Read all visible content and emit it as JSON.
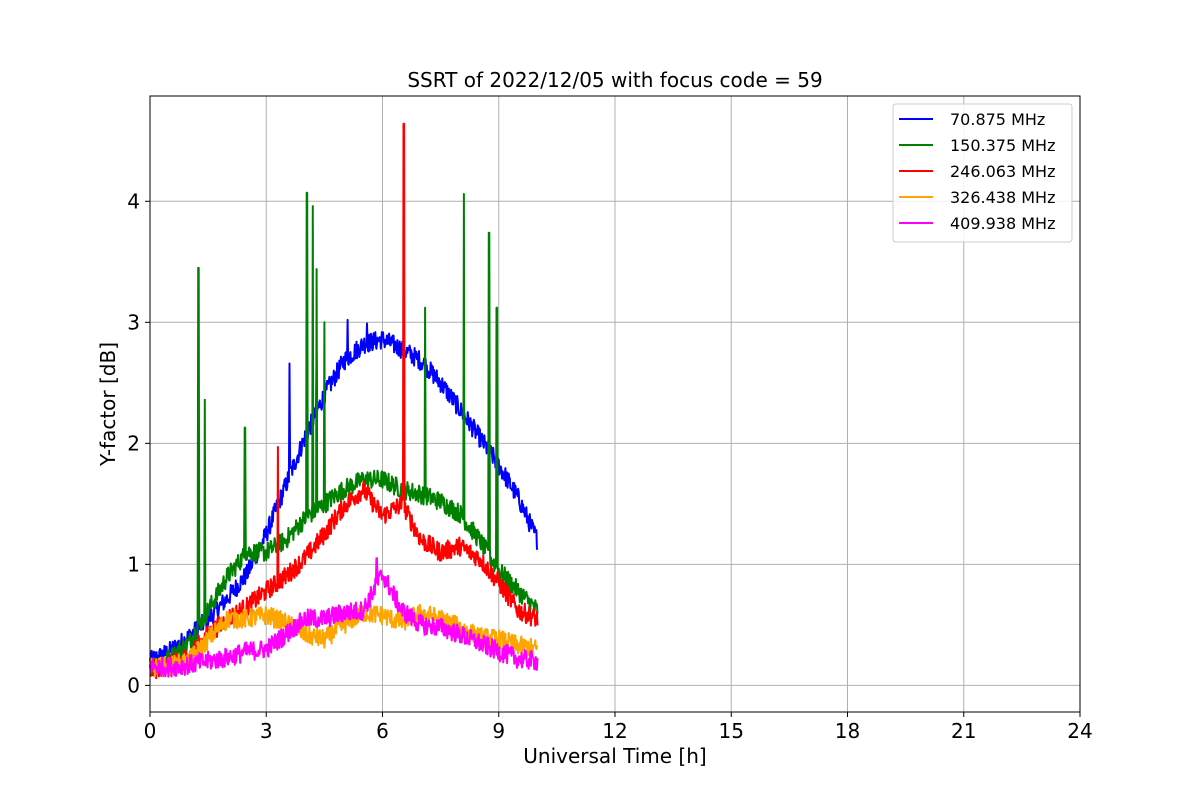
{
  "chart_data": {
    "type": "line",
    "title": "SSRT of 2022/12/05 with focus code = 59",
    "xlabel": "Universal Time [h]",
    "ylabel": "Y-factor [dB]",
    "xlim": [
      0,
      24
    ],
    "ylim": [
      -0.22,
      4.87
    ],
    "xticks": [
      0,
      3,
      6,
      9,
      12,
      15,
      18,
      21,
      24
    ],
    "yticks": [
      0,
      1,
      2,
      3,
      4
    ],
    "grid": true,
    "legend_position": "top-right",
    "series": [
      {
        "name": " 70.875 MHz",
        "color": "#0000ff",
        "x": [
          0.0,
          0.5,
          1.0,
          1.5,
          2.0,
          2.5,
          3.0,
          3.5,
          4.0,
          4.5,
          5.0,
          5.5,
          6.0,
          6.5,
          7.0,
          7.5,
          8.0,
          8.5,
          9.0,
          9.5,
          10.0
        ],
        "y": [
          0.2,
          0.28,
          0.4,
          0.55,
          0.72,
          0.92,
          1.25,
          1.65,
          2.05,
          2.4,
          2.68,
          2.82,
          2.86,
          2.78,
          2.68,
          2.5,
          2.28,
          2.05,
          1.82,
          1.55,
          1.2
        ],
        "spikes": [
          [
            3.6,
            2.66
          ],
          [
            4.3,
            2.72
          ],
          [
            5.1,
            3.02
          ],
          [
            5.6,
            2.99
          ]
        ]
      },
      {
        "name": "150.375 MHz",
        "color": "#008000",
        "x": [
          0.0,
          0.5,
          1.0,
          1.5,
          2.0,
          2.5,
          3.0,
          3.5,
          4.0,
          4.5,
          5.0,
          5.5,
          6.0,
          6.5,
          7.0,
          7.5,
          8.0,
          8.5,
          9.0,
          9.5,
          10.0
        ],
        "y": [
          0.15,
          0.22,
          0.35,
          0.62,
          0.9,
          1.1,
          1.1,
          1.2,
          1.38,
          1.5,
          1.62,
          1.7,
          1.7,
          1.62,
          1.58,
          1.52,
          1.42,
          1.2,
          0.95,
          0.78,
          0.62
        ],
        "spikes": [
          [
            1.25,
            3.45
          ],
          [
            1.42,
            2.36
          ],
          [
            2.45,
            2.13
          ],
          [
            4.05,
            4.07
          ],
          [
            4.2,
            3.96
          ],
          [
            4.3,
            3.44
          ],
          [
            4.5,
            3.0
          ],
          [
            7.1,
            3.12
          ],
          [
            8.1,
            4.06
          ],
          [
            8.75,
            3.74
          ],
          [
            8.95,
            3.12
          ]
        ]
      },
      {
        "name": "246.063 MHz",
        "color": "#ff0000",
        "x": [
          0.0,
          0.5,
          1.0,
          1.5,
          2.0,
          2.5,
          3.0,
          3.5,
          4.0,
          4.5,
          5.0,
          5.5,
          6.0,
          6.5,
          7.0,
          7.5,
          8.0,
          8.5,
          9.0,
          9.5,
          10.0
        ],
        "y": [
          0.12,
          0.17,
          0.24,
          0.42,
          0.55,
          0.65,
          0.78,
          0.9,
          1.05,
          1.25,
          1.48,
          1.62,
          1.4,
          1.5,
          1.2,
          1.1,
          1.15,
          1.05,
          0.85,
          0.62,
          0.55
        ],
        "spikes": [
          [
            3.3,
            1.97
          ],
          [
            6.55,
            4.64
          ]
        ]
      },
      {
        "name": "326.438 MHz",
        "color": "#ffa500",
        "x": [
          0.0,
          0.5,
          1.0,
          1.5,
          2.0,
          2.5,
          3.0,
          3.5,
          4.0,
          4.5,
          5.0,
          5.5,
          6.0,
          6.5,
          7.0,
          7.5,
          8.0,
          8.5,
          9.0,
          9.5,
          10.0
        ],
        "y": [
          0.14,
          0.16,
          0.2,
          0.38,
          0.55,
          0.55,
          0.58,
          0.52,
          0.42,
          0.38,
          0.5,
          0.6,
          0.58,
          0.52,
          0.6,
          0.55,
          0.48,
          0.4,
          0.38,
          0.33,
          0.3
        ],
        "spikes": []
      },
      {
        "name": "409.938 MHz",
        "color": "#ff00ff",
        "x": [
          0.0,
          0.5,
          1.0,
          1.5,
          2.0,
          2.5,
          3.0,
          3.5,
          4.0,
          4.5,
          5.0,
          5.5,
          6.0,
          6.5,
          7.0,
          7.5,
          8.0,
          8.5,
          9.0,
          9.5,
          10.0
        ],
        "y": [
          0.16,
          0.15,
          0.17,
          0.2,
          0.23,
          0.28,
          0.3,
          0.42,
          0.55,
          0.55,
          0.6,
          0.62,
          0.92,
          0.62,
          0.5,
          0.48,
          0.42,
          0.35,
          0.28,
          0.22,
          0.2
        ],
        "spikes": [
          [
            5.85,
            1.05
          ]
        ]
      }
    ]
  }
}
